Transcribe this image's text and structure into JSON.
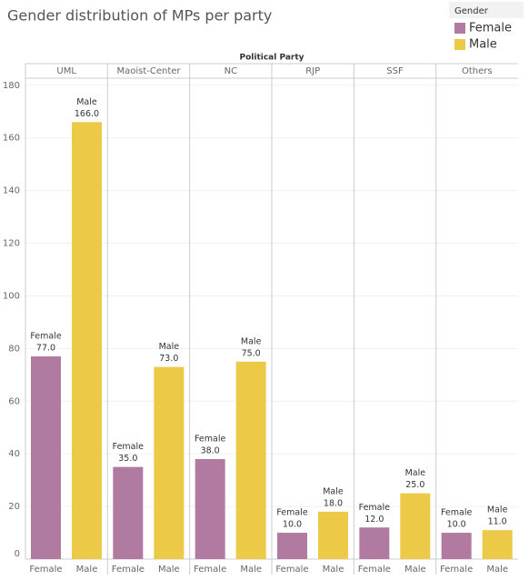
{
  "chart_data": {
    "type": "bar",
    "title": "Gender distribution of MPs per party",
    "column_header": "Political Party",
    "legend_title": "Gender",
    "categories": [
      "UML",
      "Maoist-Center",
      "NC",
      "RJP",
      "SSF",
      "Others"
    ],
    "series": [
      {
        "name": "Female",
        "color": "#b07aa1",
        "values": [
          77,
          35,
          38,
          10,
          12,
          10
        ],
        "value_labels": [
          "77.0",
          "35.0",
          "38.0",
          "10.0",
          "12.0",
          "10.0"
        ]
      },
      {
        "name": "Male",
        "color": "#edc948",
        "values": [
          166,
          73,
          75,
          18,
          25,
          11
        ],
        "value_labels": [
          "166.0",
          "73.0",
          "75.0",
          "18.0",
          "25.0",
          "11.0"
        ]
      }
    ],
    "ylim": [
      0,
      182
    ],
    "yticks": [
      0,
      20,
      40,
      60,
      80,
      100,
      120,
      140,
      160,
      180
    ],
    "grid": true
  }
}
